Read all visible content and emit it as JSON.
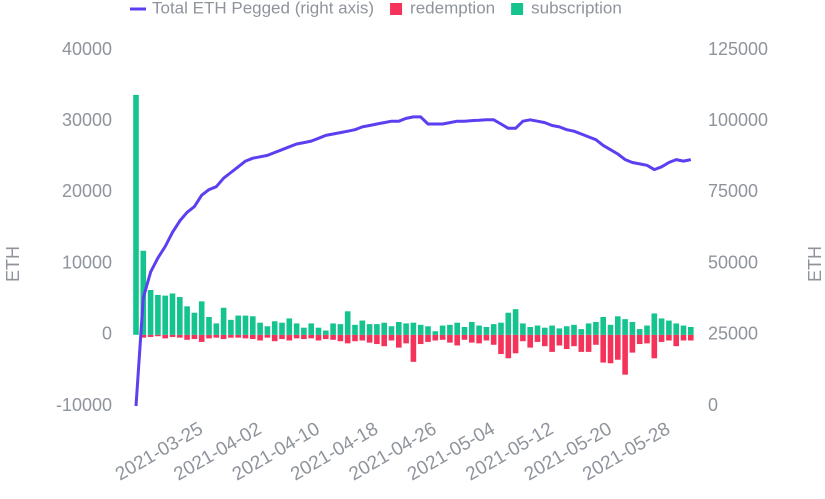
{
  "chart_data": {
    "type": "bar",
    "ylabel": "ETH",
    "y2label": "ETH",
    "ylim": [
      -10000,
      40000
    ],
    "yticks": [
      -10000,
      0,
      10000,
      20000,
      30000,
      40000
    ],
    "y2lim": [
      0,
      125000
    ],
    "y2ticks": [
      0,
      25000,
      50000,
      75000,
      100000,
      125000
    ],
    "categories": [
      null,
      null,
      null,
      null,
      null,
      null,
      null,
      null,
      null,
      "2021-03-25",
      null,
      null,
      null,
      null,
      null,
      null,
      null,
      "2021-04-02",
      null,
      null,
      null,
      null,
      null,
      null,
      null,
      "2021-04-10",
      null,
      null,
      null,
      null,
      null,
      null,
      null,
      "2021-04-18",
      null,
      null,
      null,
      null,
      null,
      null,
      null,
      "2021-04-26",
      null,
      null,
      null,
      null,
      null,
      null,
      null,
      "2021-05-04",
      null,
      null,
      null,
      null,
      null,
      null,
      null,
      "2021-05-12",
      null,
      null,
      null,
      null,
      null,
      null,
      null,
      "2021-05-20",
      null,
      null,
      null,
      null,
      null,
      null,
      null,
      "2021-05-28",
      null,
      null,
      null
    ],
    "series": [
      {
        "name": "Total ETH Pegged (right axis)",
        "type": "line",
        "axis": "y2",
        "color": "#5b3ff0",
        "values": [
          0,
          38000,
          47000,
          52000,
          56000,
          61000,
          65000,
          68000,
          70000,
          74000,
          76000,
          77000,
          80000,
          82000,
          84000,
          86000,
          87000,
          87500,
          88000,
          89000,
          90000,
          91000,
          92000,
          92500,
          93000,
          94000,
          95000,
          95500,
          96000,
          96500,
          97000,
          98000,
          98500,
          99000,
          99500,
          100000,
          100000,
          101000,
          101500,
          101500,
          99000,
          99000,
          99000,
          99500,
          100000,
          100000,
          100200,
          100300,
          100500,
          100500,
          99000,
          97500,
          97500,
          100000,
          100500,
          100000,
          99500,
          98500,
          98000,
          97000,
          96500,
          95500,
          94500,
          93500,
          91500,
          90000,
          88500,
          86500,
          85500,
          85000,
          84500,
          83000,
          84000,
          85500,
          86500,
          86000,
          86500
        ]
      },
      {
        "name": "redemption",
        "type": "bar",
        "color": "#f5325a",
        "values": [
          0,
          -400,
          -300,
          -200,
          -500,
          -300,
          -400,
          -700,
          -600,
          -1000,
          -500,
          -400,
          -600,
          -400,
          -400,
          -500,
          -600,
          -800,
          -400,
          -900,
          -600,
          -800,
          -500,
          -600,
          -500,
          -800,
          -600,
          -700,
          -900,
          -1200,
          -900,
          -800,
          -1100,
          -1300,
          -1600,
          -800,
          -1800,
          -1200,
          -3800,
          -1300,
          -1000,
          -800,
          -700,
          -1100,
          -1500,
          -700,
          -1100,
          -1200,
          -800,
          -1400,
          -2700,
          -3300,
          -2600,
          -900,
          -1800,
          -1000,
          -1600,
          -2400,
          -1500,
          -2000,
          -1600,
          -2400,
          -2400,
          -1400,
          -3900,
          -4000,
          -3500,
          -5600,
          -2500,
          -1300,
          -1200,
          -3300,
          -1000,
          -800,
          -1600,
          -800,
          -800
        ]
      },
      {
        "name": "subscription",
        "type": "bar",
        "color": "#14c38e",
        "values": [
          33700,
          11800,
          6300,
          5600,
          5500,
          5800,
          5300,
          4000,
          3100,
          4700,
          2500,
          1600,
          3800,
          2100,
          2700,
          2700,
          2600,
          1700,
          1200,
          1900,
          1700,
          2300,
          1600,
          1000,
          1600,
          1000,
          600,
          1600,
          1500,
          3300,
          1400,
          2000,
          1500,
          1500,
          1700,
          1200,
          1800,
          1600,
          1700,
          1400,
          1200,
          500,
          1300,
          1400,
          1700,
          1100,
          1800,
          1300,
          1100,
          1500,
          1700,
          3100,
          3600,
          1600,
          1100,
          1300,
          1000,
          1300,
          900,
          1200,
          1400,
          800,
          1600,
          1800,
          2500,
          1400,
          2600,
          2200,
          1800,
          800,
          1300,
          3000,
          2300,
          2000,
          1600,
          1300,
          1100
        ]
      }
    ]
  }
}
